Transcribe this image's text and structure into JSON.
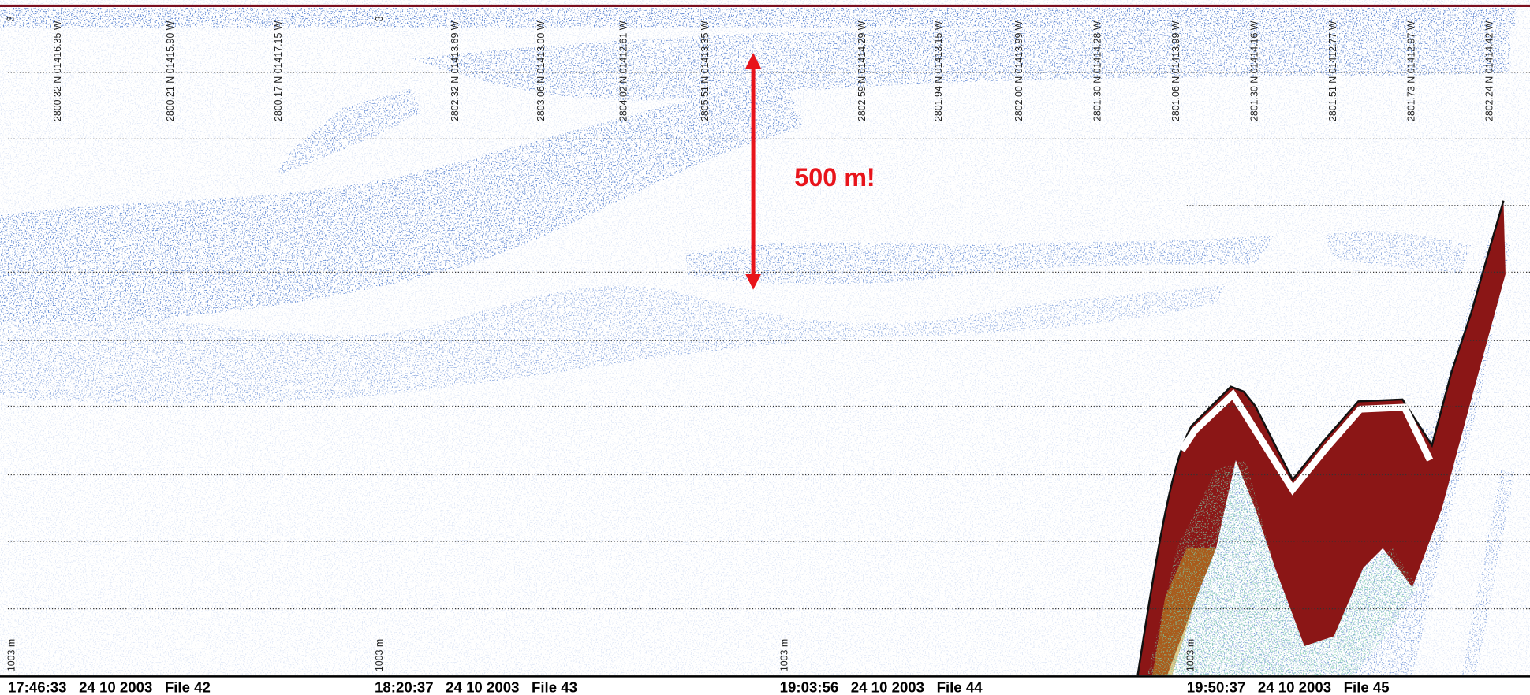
{
  "echogram": {
    "annotation": "500 m!",
    "files": [
      {
        "label": "17:46:33   24 10 2003   File 42",
        "depth_label": "1003 m",
        "top_label": "3"
      },
      {
        "label": "18:20:37   24 10 2003   File 43",
        "depth_label": "1003 m",
        "top_label": "3"
      },
      {
        "label": "19:03:56   24 10 2003   File 44",
        "depth_label": "1003 m"
      },
      {
        "label": "19:50:37   24 10 2003   File 45",
        "depth_label": "1003 m"
      }
    ],
    "positions": [
      "2800.32 N 01416.35 W",
      "2800.21 N 01415.90 W",
      "2800.17 N 01417.15 W",
      "2802.32 N 01413.69 W",
      "2803.06 N 01413.00 W",
      "2804.02 N 01412.61 W",
      "2805.51 N 01413.35 W",
      "2802.59 N 01414.29 W",
      "2801.94 N 01413.15 W",
      "2802.00 N 01413.99 W",
      "2801.30 N 01414.28 W",
      "2801.06 N 01413.99 W",
      "2801.30 N 01414.16 W",
      "2801.51 N 01412.77 W",
      "2801.73 N 01412.97 W",
      "2802.24 N 01414.42 W"
    ]
  }
}
